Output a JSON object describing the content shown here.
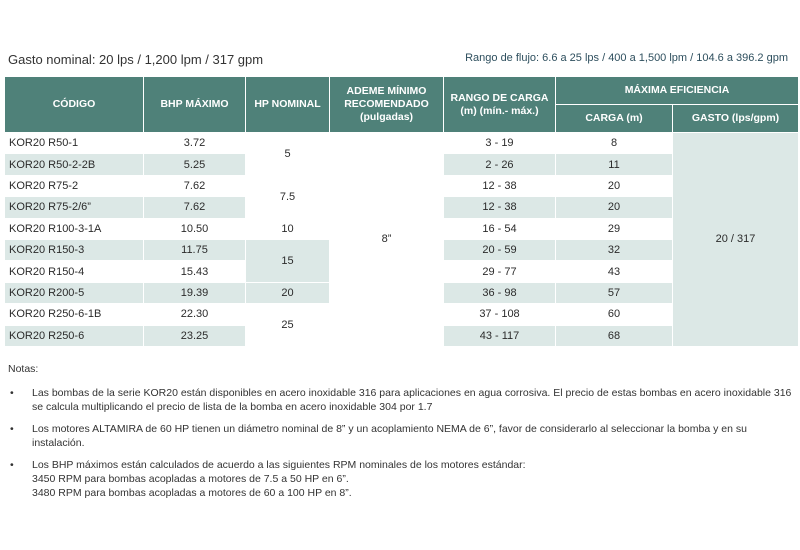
{
  "header": {
    "left": "Gasto nominal: 20 lps / 1,200 lpm / 317 gpm",
    "right": "Rango de flujo: 6.6 a 25 lps / 400 a 1,500 lpm / 104.6 a 396.2 gpm"
  },
  "table": {
    "headers": {
      "codigo": "CÓDIGO",
      "bhp": "BHP MÁXIMO",
      "hp": "HP NOMINAL",
      "ademe": "ADEME MÍNIMO RECOMENDADO (pulgadas)",
      "rango": "RANGO DE CARGA (m) (mín.- máx.)",
      "eficiencia": "MÁXIMA EFICIENCIA",
      "carga": "CARGA (m)",
      "gasto": "GASTO (lps/gpm)"
    },
    "rows": [
      {
        "code": "KOR20 R50-1",
        "bhp": "3.72",
        "range": "3 - 19",
        "carga": "8"
      },
      {
        "code": "KOR20 R50-2-2B",
        "bhp": "5.25",
        "range": "2 - 26",
        "carga": "11"
      },
      {
        "code": "KOR20 R75-2",
        "bhp": "7.62",
        "range": "12 - 38",
        "carga": "20"
      },
      {
        "code": "KOR20 R75-2/6”",
        "bhp": "7.62",
        "range": "12 - 38",
        "carga": "20"
      },
      {
        "code": "KOR20 R100-3-1A",
        "bhp": "10.50",
        "range": "16 - 54",
        "carga": "29"
      },
      {
        "code": "KOR20 R150-3",
        "bhp": "11.75",
        "range": "20 - 59",
        "carga": "32"
      },
      {
        "code": "KOR20 R150-4",
        "bhp": "15.43",
        "range": "29 - 77",
        "carga": "43"
      },
      {
        "code": "KOR20 R200-5",
        "bhp": "19.39",
        "range": "36 - 98",
        "carga": "57"
      },
      {
        "code": "KOR20 R250-6-1B",
        "bhp": "22.30",
        "range": "37 - 108",
        "carga": "60"
      },
      {
        "code": "KOR20 R250-6",
        "bhp": "23.25",
        "range": "43 - 117",
        "carga": "68"
      }
    ],
    "hp_groups": [
      "5",
      "7.5",
      "10",
      "15",
      "20",
      "25"
    ],
    "ademe": "8”",
    "gasto": "20 / 317"
  },
  "notes": {
    "title": "Notas:",
    "bullet": "•",
    "items": [
      "Las bombas de la serie KOR20 están disponibles en acero inoxidable 316 para aplicaciones en agua corrosiva. El precio de estas bombas en acero inoxidable 316 se calcula multiplicando el precio de lista de la bomba en acero inoxidable 304 por 1.7",
      "Los motores ALTAMIRA de 60 HP tienen un diámetro nominal de 8” y un acoplamiento NEMA de 6”, favor de considerarlo al seleccionar la bomba y en su instalación.",
      "Los BHP máximos están calculados de acuerdo a las siguientes RPM nominales de los motores estándar:"
    ],
    "rpm_lines": [
      "3450 RPM para bombas acopladas a motores de 7.5 a 50 HP en 6”.",
      "3480 RPM para bombas acopladas a motores de 60 a 100 HP en 8”."
    ]
  }
}
